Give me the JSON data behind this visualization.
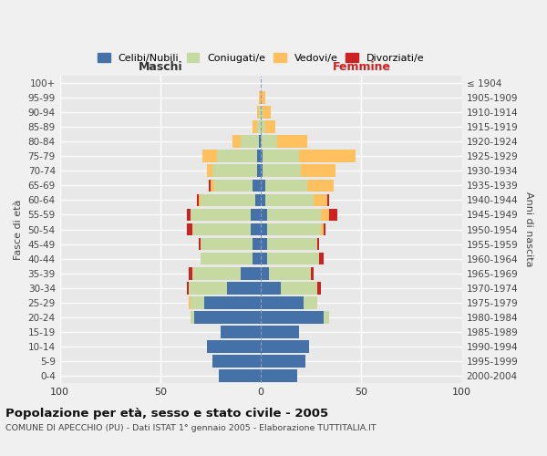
{
  "age_groups": [
    "0-4",
    "5-9",
    "10-14",
    "15-19",
    "20-24",
    "25-29",
    "30-34",
    "35-39",
    "40-44",
    "45-49",
    "50-54",
    "55-59",
    "60-64",
    "65-69",
    "70-74",
    "75-79",
    "80-84",
    "85-89",
    "90-94",
    "95-99",
    "100+"
  ],
  "birth_years": [
    "2000-2004",
    "1995-1999",
    "1990-1994",
    "1985-1989",
    "1980-1984",
    "1975-1979",
    "1970-1974",
    "1965-1969",
    "1960-1964",
    "1955-1959",
    "1950-1954",
    "1945-1949",
    "1940-1944",
    "1935-1939",
    "1930-1934",
    "1925-1929",
    "1920-1924",
    "1915-1919",
    "1910-1914",
    "1905-1909",
    "≤ 1904"
  ],
  "maschi": {
    "celibi": [
      21,
      24,
      27,
      20,
      33,
      28,
      17,
      10,
      4,
      4,
      5,
      5,
      3,
      4,
      2,
      2,
      1,
      0,
      0,
      0,
      0
    ],
    "coniugati": [
      0,
      0,
      0,
      0,
      2,
      7,
      19,
      24,
      26,
      26,
      29,
      30,
      27,
      19,
      22,
      20,
      9,
      2,
      1,
      0,
      0
    ],
    "vedovi": [
      0,
      0,
      0,
      0,
      0,
      1,
      0,
      0,
      0,
      0,
      0,
      0,
      1,
      2,
      3,
      7,
      4,
      2,
      1,
      1,
      0
    ],
    "divorziati": [
      0,
      0,
      0,
      0,
      0,
      0,
      1,
      2,
      0,
      1,
      3,
      2,
      1,
      1,
      0,
      0,
      0,
      0,
      0,
      0,
      0
    ]
  },
  "femmine": {
    "nubili": [
      18,
      22,
      24,
      19,
      31,
      21,
      10,
      4,
      3,
      3,
      3,
      3,
      2,
      2,
      1,
      1,
      0,
      0,
      0,
      0,
      0
    ],
    "coniugate": [
      0,
      0,
      0,
      0,
      3,
      7,
      18,
      21,
      26,
      25,
      27,
      27,
      24,
      21,
      19,
      18,
      8,
      2,
      1,
      0,
      0
    ],
    "vedove": [
      0,
      0,
      0,
      0,
      0,
      0,
      0,
      0,
      0,
      0,
      1,
      4,
      7,
      13,
      17,
      28,
      15,
      5,
      4,
      2,
      0
    ],
    "divorziate": [
      0,
      0,
      0,
      0,
      0,
      0,
      2,
      1,
      2,
      1,
      1,
      4,
      1,
      0,
      0,
      0,
      0,
      0,
      0,
      0,
      0
    ]
  },
  "colors": {
    "celibi": "#4472a8",
    "coniugati": "#c5d9a0",
    "vedovi": "#ffc060",
    "divorziati": "#cc2222"
  },
  "xlim": 100,
  "title": "Popolazione per età, sesso e stato civile - 2005",
  "subtitle": "COMUNE DI APECCHIO (PU) - Dati ISTAT 1° gennaio 2005 - Elaborazione TUTTITALIA.IT",
  "ylabel_left": "Fasce di età",
  "ylabel_right": "Anni di nascita",
  "xlabel_left": "Maschi",
  "xlabel_right": "Femmine",
  "bg_color": "#e8e8e8",
  "grid_color": "#ffffff"
}
